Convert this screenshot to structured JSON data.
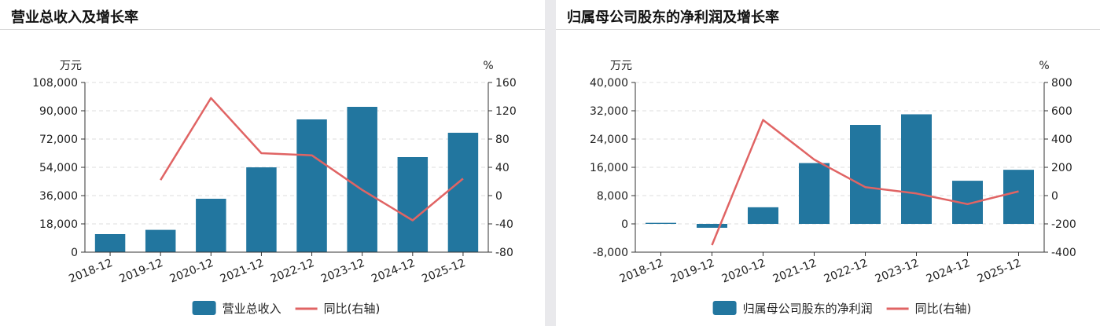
{
  "panels": [
    {
      "title": "营业总收入及增长率",
      "chart_data": {
        "type": "bar",
        "categories": [
          "2018-12",
          "2019-12",
          "2020-12",
          "2021-12",
          "2022-12",
          "2023-12",
          "2024-12",
          "2025-12"
        ],
        "series": [
          {
            "name": "营业总收入",
            "type": "bar",
            "axis": "left",
            "color": "#22769f",
            "values": [
              11500,
              14200,
              34000,
              54000,
              84500,
              92500,
              60500,
              76000
            ]
          },
          {
            "name": "同比(右轴)",
            "type": "line",
            "axis": "right",
            "color": "#e06464",
            "values": [
              null,
              22,
              138,
              60,
              57,
              8,
              -35,
              24
            ]
          }
        ],
        "left_axis": {
          "unit": "万元",
          "min": 0,
          "max": 108000,
          "ticks": [
            0,
            18000,
            36000,
            54000,
            72000,
            90000,
            108000
          ],
          "tick_labels": [
            "0",
            "18,000",
            "36,000",
            "54,000",
            "72,000",
            "90,000",
            "108,000"
          ]
        },
        "right_axis": {
          "unit": "%",
          "min": -80,
          "max": 160,
          "ticks": [
            -80,
            -40,
            0,
            40,
            80,
            120,
            160
          ],
          "tick_labels": [
            "-80",
            "-40",
            "0",
            "40",
            "80",
            "120",
            "160"
          ]
        },
        "grid": true,
        "legend_position": "bottom"
      }
    },
    {
      "title": "归属母公司股东的净利润及增长率",
      "chart_data": {
        "type": "bar",
        "categories": [
          "2018-12",
          "2019-12",
          "2020-12",
          "2021-12",
          "2022-12",
          "2023-12",
          "2024-12",
          "2025-12"
        ],
        "series": [
          {
            "name": "归属母公司股东的净利润",
            "type": "bar",
            "axis": "left",
            "color": "#22769f",
            "values": [
              300,
              -1100,
              4700,
              17200,
              28000,
              31000,
              12200,
              15300
            ]
          },
          {
            "name": "同比(右轴)",
            "type": "line",
            "axis": "right",
            "color": "#e06464",
            "values": [
              null,
              -350,
              535,
              255,
              60,
              15,
              -60,
              30
            ]
          }
        ],
        "left_axis": {
          "unit": "万元",
          "min": -8000,
          "max": 40000,
          "ticks": [
            -8000,
            0,
            8000,
            16000,
            24000,
            32000,
            40000
          ],
          "tick_labels": [
            "-8,000",
            "0",
            "8,000",
            "16,000",
            "24,000",
            "32,000",
            "40,000"
          ]
        },
        "right_axis": {
          "unit": "%",
          "min": -400,
          "max": 800,
          "ticks": [
            -400,
            -200,
            0,
            200,
            400,
            600,
            800
          ],
          "tick_labels": [
            "-400",
            "-200",
            "0",
            "200",
            "400",
            "600",
            "800"
          ]
        },
        "grid": true,
        "legend_position": "bottom"
      }
    }
  ]
}
